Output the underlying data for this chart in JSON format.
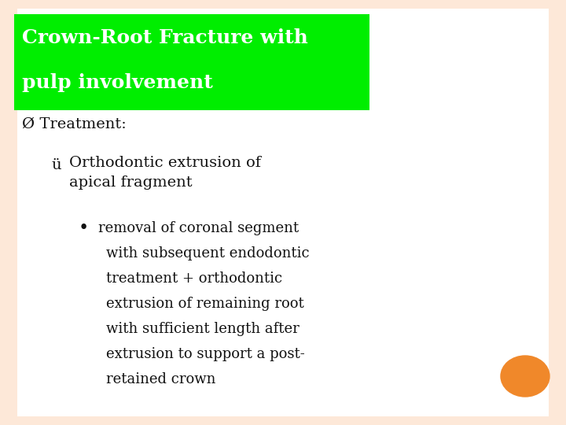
{
  "bg_color": "#fde8d8",
  "slide_bg": "#ffffff",
  "title_text_line1": "Crown-Root Fracture with",
  "title_text_line2": "pulp involvement",
  "title_bg_color": "#00ee00",
  "title_text_color": "#ffffff",
  "bullet1_symbol": "Ø",
  "bullet1_text": " Treatment:",
  "bullet2_symbol": "ü",
  "bullet2_line1": " Orthodontic extrusion of",
  "bullet2_line2": "   apical fragment",
  "bullet3_symbol": "•",
  "bullet3_lines": [
    " removal of coronal segment",
    "   with subsequent endodontic",
    "   treatment + orthodontic",
    "   extrusion of remaining root",
    "   with sufficient length after",
    "   extrusion to support a post-",
    "   retained crown"
  ],
  "orange_circle_color": "#f0882a",
  "font_family": "DejaVu Serif",
  "title_fontsize": 18,
  "body_fontsize": 14,
  "sub_fontsize": 13
}
